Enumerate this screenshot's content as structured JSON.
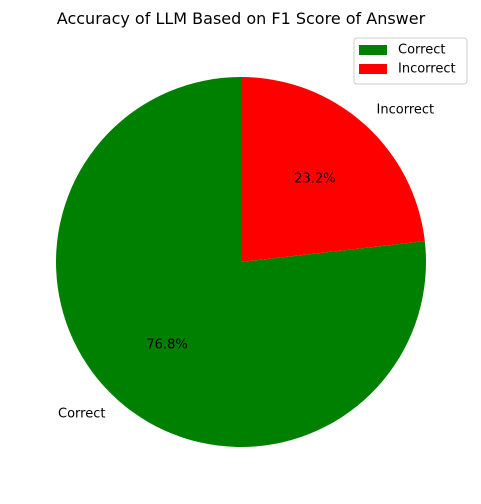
{
  "chart_data": {
    "type": "pie",
    "title": "Accuracy of LLM Based on F1 Score of Answer",
    "categories": [
      "Correct",
      "Incorrect"
    ],
    "values": [
      76.8,
      23.2
    ],
    "percent_labels": [
      "76.8%",
      "23.2%"
    ],
    "colors": [
      "#008000",
      "#ff0000"
    ],
    "start_angle_deg": 90,
    "direction": "counterclockwise",
    "legend": {
      "placement": "top-right",
      "entries": [
        "Correct",
        "Incorrect"
      ]
    }
  }
}
